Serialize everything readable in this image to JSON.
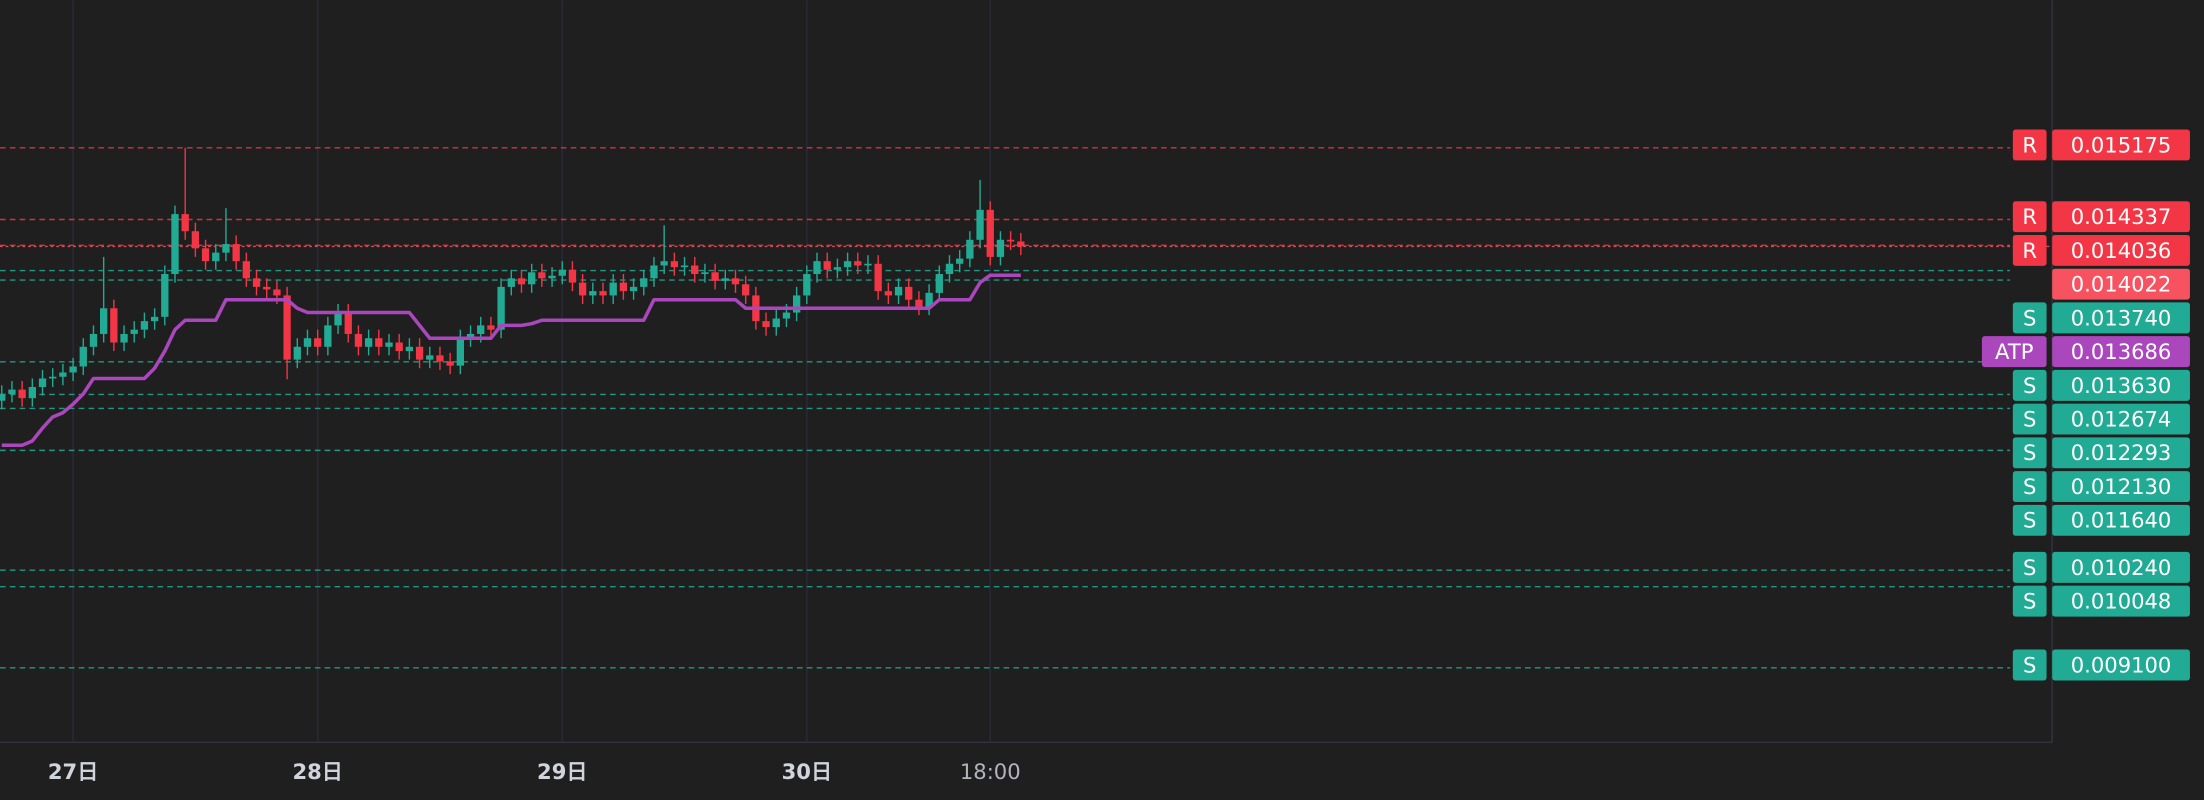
{
  "chart_data": {
    "type": "candlestick",
    "categories": [
      null,
      null,
      null,
      null,
      null,
      null,
      null,
      "27日",
      null,
      null,
      null,
      null,
      null,
      null,
      null,
      null,
      null,
      null,
      null,
      null,
      null,
      null,
      null,
      null,
      null,
      null,
      null,
      null,
      null,
      null,
      null,
      "28日",
      null,
      null,
      null,
      null,
      null,
      null,
      null,
      null,
      null,
      null,
      null,
      null,
      null,
      null,
      null,
      null,
      null,
      null,
      null,
      null,
      null,
      null,
      null,
      "29日",
      null,
      null,
      null,
      null,
      null,
      null,
      null,
      null,
      null,
      null,
      null,
      null,
      null,
      null,
      null,
      null,
      null,
      null,
      null,
      null,
      null,
      null,
      null,
      "30日",
      null,
      null,
      null,
      null,
      null,
      null,
      null,
      null,
      null,
      null,
      null,
      null,
      null,
      null,
      null,
      null,
      null,
      "18:00",
      null,
      null,
      null
    ],
    "open": [
      0.01222,
      0.0123,
      0.01235,
      0.01225,
      0.01238,
      0.01248,
      0.0125,
      0.01255,
      0.01262,
      0.01285,
      0.013,
      0.0133,
      0.0129,
      0.013,
      0.01305,
      0.01315,
      0.0132,
      0.0137,
      0.0144,
      0.0142,
      0.014,
      0.01385,
      0.01395,
      0.01405,
      0.01385,
      0.01365,
      0.01355,
      0.01352,
      0.01345,
      0.0127,
      0.01285,
      0.01295,
      0.01285,
      0.0131,
      0.01325,
      0.013,
      0.01285,
      0.01295,
      0.01285,
      0.0129,
      0.0128,
      0.01285,
      0.0127,
      0.01275,
      0.01268,
      0.01263,
      0.01295,
      0.013,
      0.0131,
      0.01305,
      0.01355,
      0.01365,
      0.01358,
      0.01372,
      0.01365,
      0.01368,
      0.01375,
      0.0136,
      0.01345,
      0.0135,
      0.01345,
      0.0136,
      0.0135,
      0.01355,
      0.01365,
      0.0138,
      0.01385,
      0.01378,
      0.0138,
      0.0137,
      0.01372,
      0.01362,
      0.01365,
      0.01358,
      0.01345,
      0.01315,
      0.01308,
      0.01318,
      0.01325,
      0.01345,
      0.0137,
      0.01385,
      0.01375,
      0.01378,
      0.01385,
      0.0138,
      0.01382,
      0.0135,
      0.01345,
      0.01355,
      0.0134,
      0.01332,
      0.01348,
      0.0137,
      0.01382,
      0.01388,
      0.0141,
      0.01445,
      0.0139,
      0.0141,
      0.01408
    ],
    "high": [
      0.0124,
      0.01245,
      0.01245,
      0.01248,
      0.01258,
      0.0126,
      0.01265,
      0.01272,
      0.01295,
      0.0131,
      0.0139,
      0.0134,
      0.0131,
      0.01315,
      0.01325,
      0.0133,
      0.0138,
      0.0145,
      0.015175,
      0.0143,
      0.0141,
      0.01405,
      0.01447,
      0.01415,
      0.01395,
      0.01375,
      0.01365,
      0.01362,
      0.01355,
      0.01295,
      0.01305,
      0.01305,
      0.0132,
      0.01335,
      0.01335,
      0.0131,
      0.01305,
      0.01305,
      0.013,
      0.013,
      0.01295,
      0.01295,
      0.01285,
      0.01285,
      0.01278,
      0.01305,
      0.0131,
      0.0132,
      0.0132,
      0.01365,
      0.01375,
      0.01375,
      0.01382,
      0.01382,
      0.01378,
      0.01385,
      0.01385,
      0.0137,
      0.0136,
      0.0136,
      0.0137,
      0.0137,
      0.01365,
      0.01375,
      0.0139,
      0.01427,
      0.01395,
      0.0139,
      0.0139,
      0.01382,
      0.01382,
      0.01375,
      0.01375,
      0.01368,
      0.01355,
      0.01325,
      0.01328,
      0.01335,
      0.01355,
      0.0138,
      0.01395,
      0.01395,
      0.01388,
      0.01395,
      0.01395,
      0.01392,
      0.01392,
      0.0136,
      0.01365,
      0.01365,
      0.0135,
      0.01358,
      0.0138,
      0.01392,
      0.01398,
      0.0142,
      0.0148,
      0.01455,
      0.0142,
      0.0142,
      0.01418
    ],
    "low": [
      0.01212,
      0.0122,
      0.01215,
      0.01215,
      0.01228,
      0.01238,
      0.0124,
      0.01245,
      0.01252,
      0.01275,
      0.0129,
      0.0128,
      0.0128,
      0.0129,
      0.01295,
      0.01305,
      0.0131,
      0.0136,
      0.0141,
      0.0139,
      0.01375,
      0.01375,
      0.01385,
      0.01375,
      0.01355,
      0.01345,
      0.01342,
      0.01335,
      0.01247,
      0.0126,
      0.01275,
      0.01275,
      0.01275,
      0.013,
      0.0129,
      0.01275,
      0.01275,
      0.01275,
      0.01275,
      0.0127,
      0.0127,
      0.0126,
      0.0126,
      0.01258,
      0.01253,
      0.01253,
      0.01285,
      0.0129,
      0.01295,
      0.01295,
      0.01345,
      0.01348,
      0.01348,
      0.01355,
      0.01355,
      0.01358,
      0.0135,
      0.01335,
      0.01335,
      0.01335,
      0.01335,
      0.0134,
      0.0134,
      0.01345,
      0.01355,
      0.0137,
      0.01368,
      0.01368,
      0.0136,
      0.0136,
      0.01352,
      0.01352,
      0.01348,
      0.01335,
      0.01305,
      0.01298,
      0.01298,
      0.01308,
      0.01315,
      0.01335,
      0.0136,
      0.01365,
      0.01365,
      0.01368,
      0.0137,
      0.0137,
      0.0134,
      0.01335,
      0.01335,
      0.0133,
      0.01322,
      0.01322,
      0.01338,
      0.0136,
      0.01372,
      0.01378,
      0.014,
      0.0138,
      0.0138,
      0.01398,
      0.01392
    ],
    "close": [
      0.0123,
      0.01235,
      0.01225,
      0.01238,
      0.01248,
      0.0125,
      0.01255,
      0.01262,
      0.01285,
      0.013,
      0.0133,
      0.0129,
      0.013,
      0.01305,
      0.01315,
      0.0132,
      0.0137,
      0.0144,
      0.0142,
      0.014,
      0.01385,
      0.01395,
      0.01405,
      0.01385,
      0.01365,
      0.01355,
      0.01352,
      0.01345,
      0.0127,
      0.01285,
      0.01295,
      0.01285,
      0.0131,
      0.01325,
      0.013,
      0.01285,
      0.01295,
      0.01285,
      0.0129,
      0.0128,
      0.01285,
      0.0127,
      0.01275,
      0.01268,
      0.01263,
      0.01295,
      0.013,
      0.0131,
      0.01305,
      0.01355,
      0.01365,
      0.01358,
      0.01372,
      0.01365,
      0.01368,
      0.01375,
      0.0136,
      0.01345,
      0.0135,
      0.01345,
      0.0136,
      0.0135,
      0.01355,
      0.01365,
      0.0138,
      0.01385,
      0.01378,
      0.0138,
      0.0137,
      0.01372,
      0.01362,
      0.01365,
      0.01358,
      0.01345,
      0.01315,
      0.01308,
      0.01318,
      0.01325,
      0.01345,
      0.0137,
      0.01385,
      0.01375,
      0.01378,
      0.01385,
      0.0138,
      0.01382,
      0.0135,
      0.01345,
      0.01355,
      0.0134,
      0.01332,
      0.01348,
      0.0137,
      0.01382,
      0.01388,
      0.0141,
      0.01445,
      0.0139,
      0.0141,
      0.01408,
      0.014022
    ],
    "up_color": "#22ab94",
    "down_color": "#f23645",
    "series": [
      {
        "name": "ATP",
        "color": "#ab47bc",
        "values": [
          0.0117,
          0.0117,
          0.0117,
          0.01175,
          0.0119,
          0.01203,
          0.01208,
          0.01218,
          0.0123,
          0.01248,
          0.01248,
          0.01248,
          0.01248,
          0.01248,
          0.01248,
          0.0126,
          0.0128,
          0.01305,
          0.01316,
          0.01316,
          0.01316,
          0.01316,
          0.0134,
          0.0134,
          0.0134,
          0.0134,
          0.0134,
          0.0134,
          0.0134,
          0.0133,
          0.01325,
          0.01325,
          0.01325,
          0.01325,
          0.01325,
          0.01325,
          0.01325,
          0.01325,
          0.01325,
          0.01325,
          0.01325,
          0.0131,
          0.01295,
          0.01295,
          0.01295,
          0.01295,
          0.01295,
          0.01295,
          0.01295,
          0.0131,
          0.0131,
          0.0131,
          0.01312,
          0.01316,
          0.01316,
          0.01316,
          0.01316,
          0.01316,
          0.01316,
          0.01316,
          0.01316,
          0.01316,
          0.01316,
          0.01316,
          0.0134,
          0.0134,
          0.0134,
          0.0134,
          0.0134,
          0.0134,
          0.0134,
          0.0134,
          0.0134,
          0.0133,
          0.0133,
          0.0133,
          0.0133,
          0.0133,
          0.0133,
          0.0133,
          0.0133,
          0.0133,
          0.0133,
          0.0133,
          0.0133,
          0.0133,
          0.0133,
          0.0133,
          0.0133,
          0.0133,
          0.0133,
          0.0133,
          0.0134,
          0.0134,
          0.0134,
          0.0134,
          0.0136,
          0.013686,
          0.013686,
          0.013686,
          0.013686
        ]
      }
    ],
    "levels": [
      {
        "tag": "R",
        "value": 0.015175,
        "label": "0.015175",
        "color": "#f23645",
        "style": "dashed"
      },
      {
        "tag": "R",
        "value": 0.014337,
        "label": "0.014337",
        "color": "#f23645",
        "style": "dashed"
      },
      {
        "tag": "R",
        "value": 0.014036,
        "label": "0.014036",
        "color": "#f23645",
        "style": "dashed"
      },
      {
        "value": 0.014022,
        "label": "0.014022",
        "color": "#f7525f",
        "style": "dotted"
      },
      {
        "tag": "S",
        "value": 0.01374,
        "label": "0.013740",
        "color": "#22ab94",
        "style": "dashed"
      },
      {
        "tag": "ATP",
        "value": 0.013686,
        "label": "0.013686",
        "color": "#ab47bc",
        "style": "none"
      },
      {
        "tag": "S",
        "value": 0.01363,
        "label": "0.013630",
        "color": "#22ab94",
        "style": "dashed"
      },
      {
        "tag": "S",
        "value": 0.012674,
        "label": "0.012674",
        "color": "#22ab94",
        "style": "dashed"
      },
      {
        "tag": "S",
        "value": 0.012293,
        "label": "0.012293",
        "color": "#22ab94",
        "style": "dashed"
      },
      {
        "tag": "S",
        "value": 0.01213,
        "label": "0.012130",
        "color": "#22ab94",
        "style": "dashed"
      },
      {
        "tag": "S",
        "value": 0.01164,
        "label": "0.011640",
        "color": "#22ab94",
        "style": "dashed"
      },
      {
        "tag": "S",
        "value": 0.01024,
        "label": "0.010240",
        "color": "#22ab94",
        "style": "dashed"
      },
      {
        "tag": "S",
        "value": 0.010048,
        "label": "0.010048",
        "color": "#22ab94",
        "style": "dashed"
      },
      {
        "tag": "S",
        "value": 0.0091,
        "label": "0.009100",
        "color": "#22ab94",
        "style": "dashed"
      }
    ],
    "ylim": [
      0.00823,
      0.0169
    ],
    "grid": true
  }
}
